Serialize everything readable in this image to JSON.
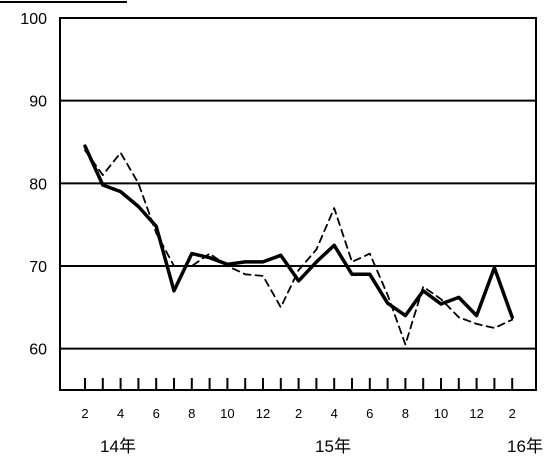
{
  "chart_data": {
    "type": "line",
    "ylim": [
      55,
      100
    ],
    "yticks": [
      60,
      70,
      80,
      90,
      100
    ],
    "grid": true,
    "x_tick_labels": [
      "2",
      "4",
      "6",
      "8",
      "10",
      "12",
      "2",
      "4",
      "6",
      "8",
      "10",
      "12",
      "2"
    ],
    "year_labels": [
      "14年",
      "15年",
      "16年"
    ],
    "months": [
      "14-02",
      "14-03",
      "14-04",
      "14-05",
      "14-06",
      "14-07",
      "14-08",
      "14-09",
      "14-10",
      "14-11",
      "14-12",
      "15-01",
      "15-02",
      "15-03",
      "15-04",
      "15-05",
      "15-06",
      "15-07",
      "15-08",
      "15-09",
      "15-10",
      "15-11",
      "15-12",
      "16-01",
      "16-02"
    ],
    "series": [
      {
        "style": "solid",
        "color": "#000000",
        "values": [
          84.5,
          79.8,
          79.0,
          77.2,
          74.8,
          67.0,
          71.5,
          71.0,
          70.2,
          70.5,
          70.5,
          71.3,
          68.2,
          70.5,
          72.5,
          69.0,
          69.0,
          65.5,
          64.0,
          67.0,
          65.4,
          66.2,
          64.0,
          69.8,
          63.8
        ]
      },
      {
        "style": "dashed",
        "color": "#000000",
        "values": [
          84.0,
          81.0,
          83.7,
          80.0,
          74.0,
          70.0,
          70.0,
          71.5,
          70.0,
          69.0,
          68.8,
          65.0,
          69.5,
          72.0,
          77.0,
          70.5,
          71.5,
          66.5,
          60.5,
          67.5,
          66.0,
          63.8,
          63.0,
          62.5,
          63.5
        ]
      }
    ]
  }
}
